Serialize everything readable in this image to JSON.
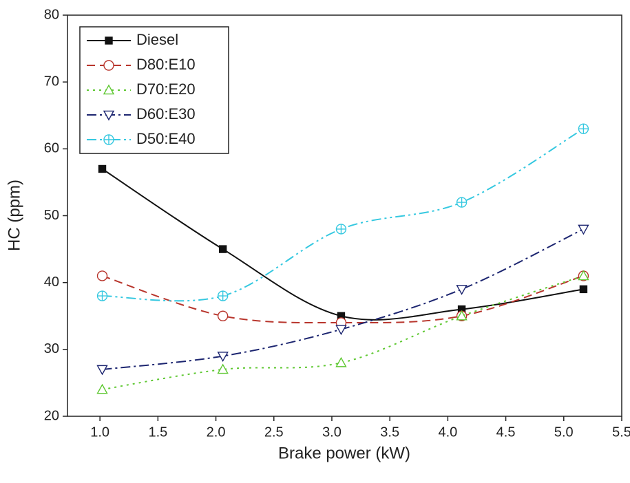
{
  "chart_data": {
    "type": "line",
    "x_label": "Brake power (kW)",
    "y_label": "HC (ppm)",
    "x": [
      1.02,
      2.06,
      3.08,
      4.12,
      5.17
    ],
    "series": [
      {
        "name": "Diesel",
        "color": "#111111",
        "marker": "square",
        "dash": "solid",
        "values": [
          57,
          45,
          35,
          36,
          39
        ]
      },
      {
        "name": "D80:E10",
        "color": "#b8352c",
        "marker": "circle",
        "dash": "dash",
        "values": [
          41,
          35,
          34,
          35,
          41
        ]
      },
      {
        "name": "D70:E20",
        "color": "#5fc832",
        "marker": "triangle-up",
        "dash": "dot",
        "values": [
          24,
          27,
          28,
          35,
          41
        ]
      },
      {
        "name": "D60:E30",
        "color": "#1c2570",
        "marker": "triangle-down",
        "dash": "dashdot",
        "values": [
          27,
          29,
          33,
          39,
          48
        ]
      },
      {
        "name": "D50:E40",
        "color": "#35c8e0",
        "marker": "circle-cross",
        "dash": "dashdotdot",
        "values": [
          38,
          38,
          48,
          52,
          63
        ]
      }
    ],
    "xlim": [
      0.72,
      5.5
    ],
    "ylim": [
      20,
      80
    ],
    "xticks": [
      {
        "value": 1.0,
        "label": "1.0"
      },
      {
        "value": 1.5,
        "label": "1.5"
      },
      {
        "value": 2.0,
        "label": "2.0"
      },
      {
        "value": 2.5,
        "label": "2.5"
      },
      {
        "value": 3.0,
        "label": "3.0"
      },
      {
        "value": 3.5,
        "label": "3.5"
      },
      {
        "value": 4.0,
        "label": "4.0"
      },
      {
        "value": 4.5,
        "label": "4.5"
      },
      {
        "value": 5.0,
        "label": "5.0"
      },
      {
        "value": 5.5,
        "label": "5.5"
      }
    ],
    "yticks": [
      20,
      30,
      40,
      50,
      60,
      70,
      80
    ],
    "grid": false,
    "legend": "upper-left"
  }
}
